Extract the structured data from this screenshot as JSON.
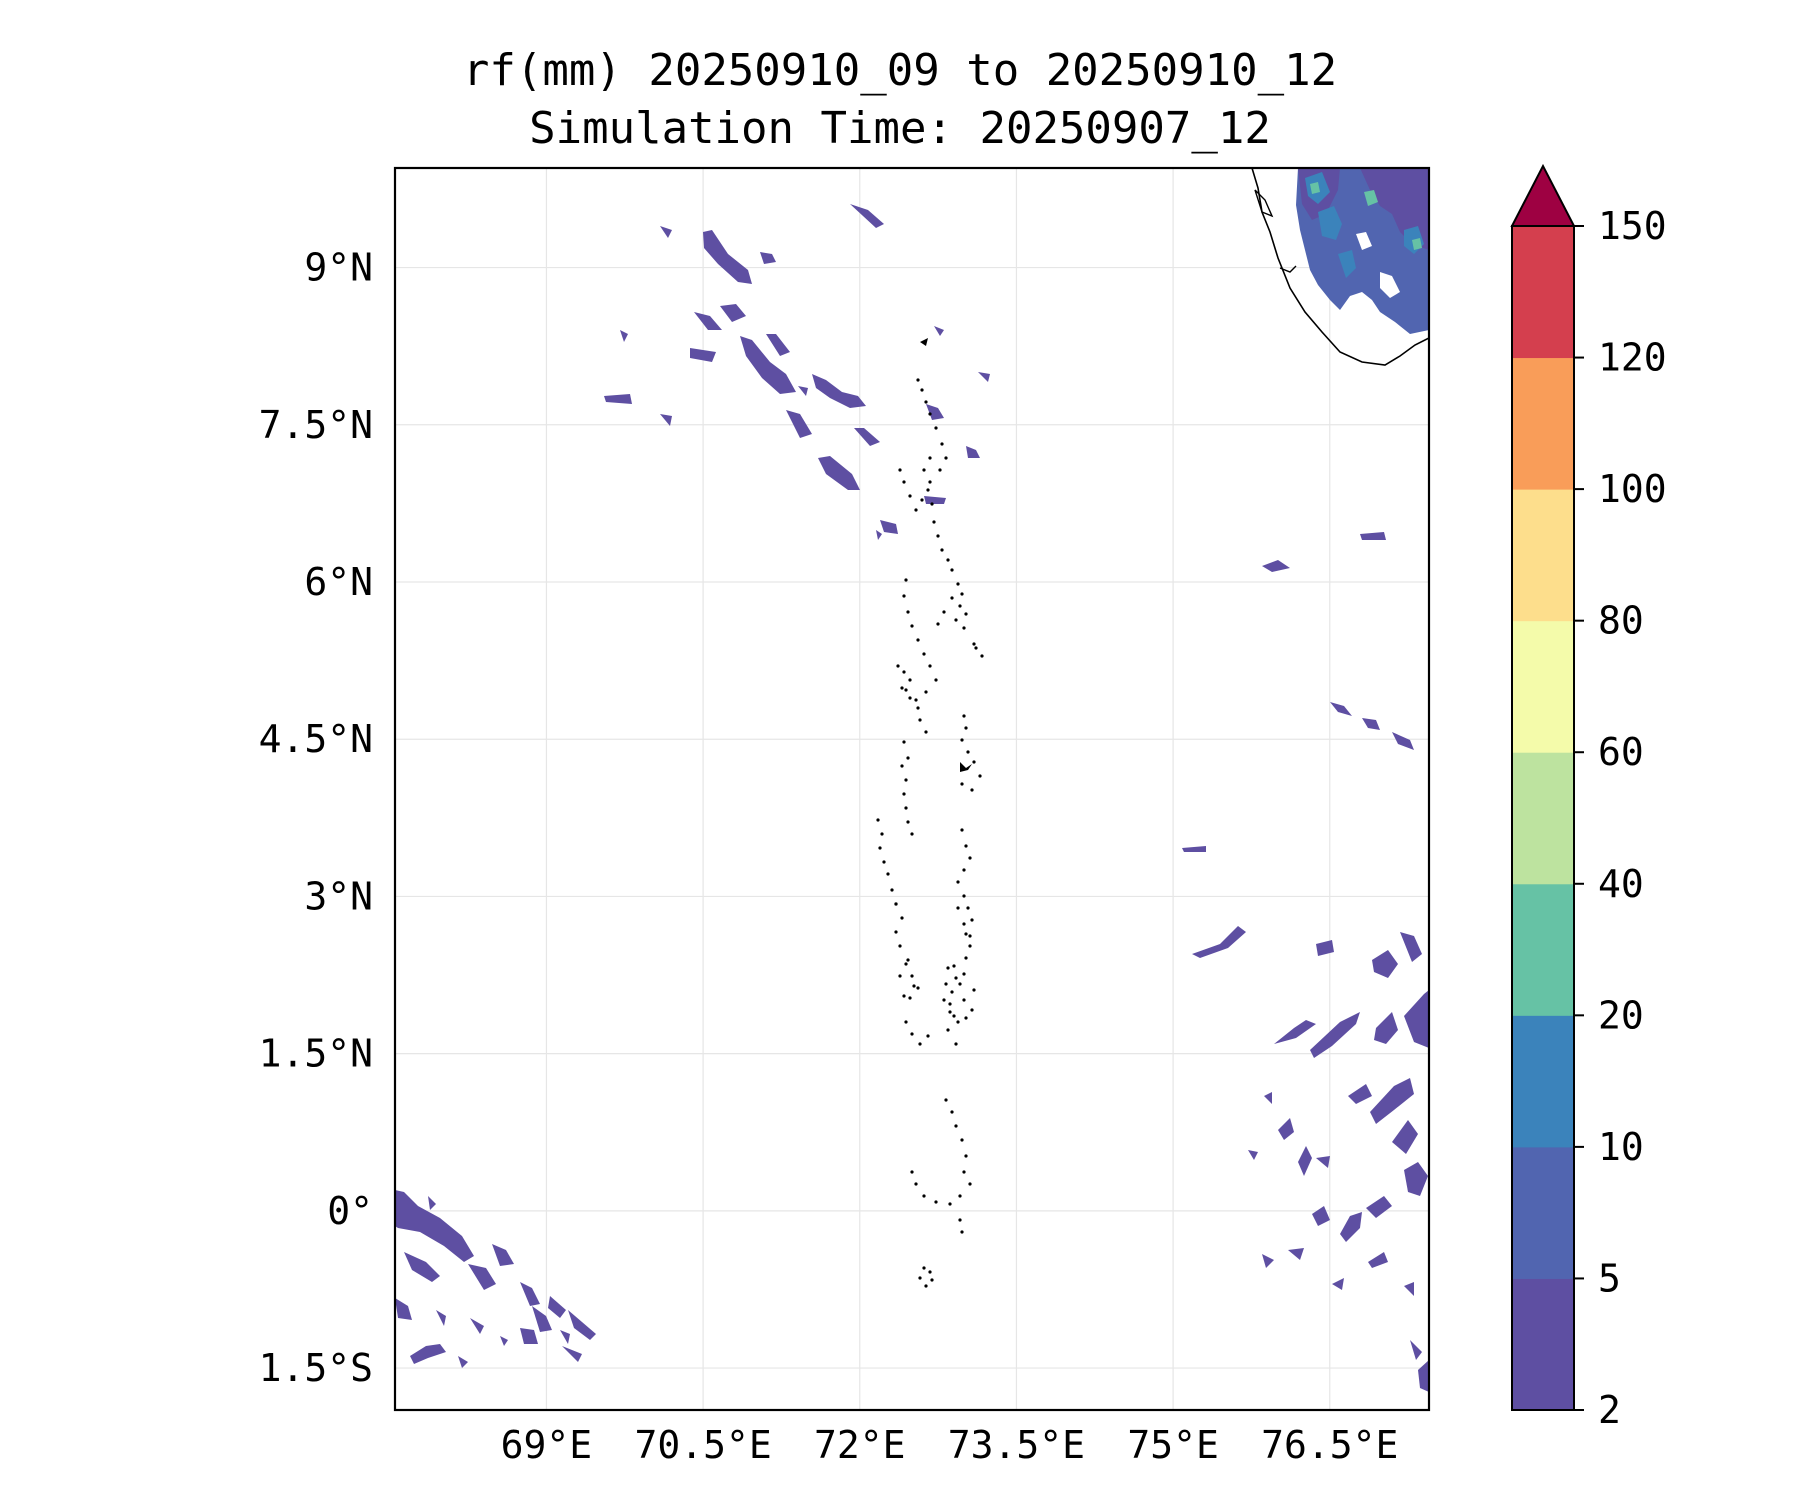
{
  "title": {
    "line1": "rf(mm) 20250910_09 to 20250910_12",
    "line2": "Simulation Time: 20250907_12"
  },
  "map": {
    "extent_lon": [
      67.55,
      77.45
    ],
    "extent_lat": [
      -1.9,
      9.95
    ],
    "lon_ticks": [
      {
        "value": 69,
        "label": "69°E"
      },
      {
        "value": 70.5,
        "label": "70.5°E"
      },
      {
        "value": 72,
        "label": "72°E"
      },
      {
        "value": 73.5,
        "label": "73.5°E"
      },
      {
        "value": 75,
        "label": "75°E"
      },
      {
        "value": 76.5,
        "label": "76.5°E"
      }
    ],
    "lat_ticks": [
      {
        "value": 9,
        "label": "9°N"
      },
      {
        "value": 7.5,
        "label": "7.5°N"
      },
      {
        "value": 6,
        "label": "6°N"
      },
      {
        "value": 4.5,
        "label": "4.5°N"
      },
      {
        "value": 3,
        "label": "3°N"
      },
      {
        "value": 1.5,
        "label": "1.5°N"
      },
      {
        "value": 0,
        "label": "0°"
      },
      {
        "value": -1.5,
        "label": "1.5°S"
      }
    ],
    "gridlines": true
  },
  "colorbar": {
    "levels": [
      "2",
      "5",
      "10",
      "20",
      "40",
      "60",
      "80",
      "100",
      "120",
      "150"
    ],
    "colors": [
      "#5e4fa2",
      "#5165b0",
      "#3b83bb",
      "#66c2a5",
      "#bde39f",
      "#f4fbaa",
      "#fdde8c",
      "#f99d59",
      "#d43f4e"
    ],
    "extend_color": "#9e0142",
    "extend": "max"
  },
  "chart_data": {
    "type": "heatmap",
    "variable": "rf(mm)",
    "units": "mm",
    "note": "Filled contours of accumulated rainfall; all visible rain cells fall in the 2-10 mm bins except small 10-40 mm cores near the southern tip of India.",
    "rain_cells": [
      {
        "lon": 70.5,
        "lat": 8.95,
        "level": "2-5"
      },
      {
        "lon": 71.2,
        "lat": 9.0,
        "level": "2-5"
      },
      {
        "lon": 71.6,
        "lat": 8.0,
        "level": "2-5"
      },
      {
        "lon": 70.8,
        "lat": 8.3,
        "level": "2-5"
      },
      {
        "lon": 72.4,
        "lat": 7.8,
        "level": "2-5"
      },
      {
        "lon": 72.2,
        "lat": 7.0,
        "level": "2-5"
      },
      {
        "lon": 73.0,
        "lat": 6.6,
        "level": "2-5"
      },
      {
        "lon": 73.6,
        "lat": 7.3,
        "level": "2-5"
      },
      {
        "lon": 76.8,
        "lat": 9.0,
        "level": "5-10"
      },
      {
        "lon": 77.2,
        "lat": 8.7,
        "level": "10-20"
      },
      {
        "lon": 77.3,
        "lat": 9.5,
        "level": "20-40"
      },
      {
        "lon": 76.6,
        "lat": 6.1,
        "level": "2-5"
      },
      {
        "lon": 77.0,
        "lat": 6.4,
        "level": "2-5"
      },
      {
        "lon": 76.9,
        "lat": 4.7,
        "level": "2-5"
      },
      {
        "lon": 75.8,
        "lat": 3.45,
        "level": "2-5"
      },
      {
        "lon": 76.3,
        "lat": 2.6,
        "level": "2-5"
      },
      {
        "lon": 77.0,
        "lat": 2.1,
        "level": "2-5"
      },
      {
        "lon": 76.8,
        "lat": 1.5,
        "level": "2-5"
      },
      {
        "lon": 77.3,
        "lat": 1.0,
        "level": "2-5"
      },
      {
        "lon": 77.2,
        "lat": 0.3,
        "level": "2-5"
      },
      {
        "lon": 76.9,
        "lat": -0.6,
        "level": "2-5"
      },
      {
        "lon": 68.0,
        "lat": -0.6,
        "level": "2-5"
      },
      {
        "lon": 68.8,
        "lat": -1.0,
        "level": "2-5"
      },
      {
        "lon": 69.3,
        "lat": -1.3,
        "level": "2-5"
      },
      {
        "lon": 68.4,
        "lat": -1.6,
        "level": "2-5"
      }
    ]
  }
}
